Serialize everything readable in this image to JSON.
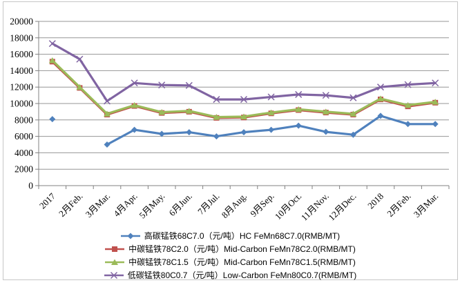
{
  "chart_data": {
    "type": "line",
    "title": "",
    "xlabel": "",
    "ylabel": "",
    "categories": [
      "2017",
      "2月Feb.",
      "3月Mar.",
      "4月Apr.",
      "5月May.",
      "6月Jun.",
      "7月Jul.",
      "8月Aug.",
      "9月Sep.",
      "10月Oct.",
      "11月Nov.",
      "12月Dec.",
      "2018",
      "2月Feb.",
      "3月Mar."
    ],
    "series": [
      {
        "name": "高碳锰铁68C7.0（元/吨）HC FeMn68C7.0(RMB/MT)",
        "color": "#4F81BD",
        "marker": "diamond",
        "values": [
          8100,
          null,
          5000,
          6800,
          6300,
          6500,
          6000,
          6500,
          6800,
          7300,
          6550,
          6200,
          8500,
          7500,
          7500
        ]
      },
      {
        "name": "中碳锰铁78C2.0（元/吨）Mid-Carbon FeMn78C2.0(RMB/MT)",
        "color": "#C0504D",
        "marker": "square",
        "values": [
          15100,
          11900,
          8650,
          9700,
          8850,
          9000,
          8250,
          8300,
          8800,
          9200,
          8900,
          8650,
          10500,
          9650,
          10100
        ]
      },
      {
        "name": "中碳锰铁78C1.5（元/吨）Mid-Carbon FeMn78C1.5(RMB/MT)",
        "color": "#9BBB59",
        "marker": "triangle",
        "values": [
          15250,
          12000,
          8750,
          9800,
          8950,
          9100,
          8350,
          8400,
          8900,
          9300,
          9000,
          8750,
          10600,
          9800,
          10200
        ]
      },
      {
        "name": "低碳锰铁80C0.7（元/吨）Low-Carbon FeMn80C0.7(RMB/MT)",
        "color": "#8064A2",
        "marker": "x",
        "values": [
          17300,
          15400,
          10300,
          12500,
          12250,
          12200,
          10500,
          10500,
          10800,
          11100,
          11000,
          10700,
          12000,
          12300,
          12500
        ]
      }
    ],
    "ylim": [
      0,
      20000
    ],
    "ytick_step": 2000,
    "grid": true,
    "legend_position": "bottom",
    "axis_color": "#808080",
    "grid_color": "#969696",
    "frame_color": "#c6c6c6"
  }
}
